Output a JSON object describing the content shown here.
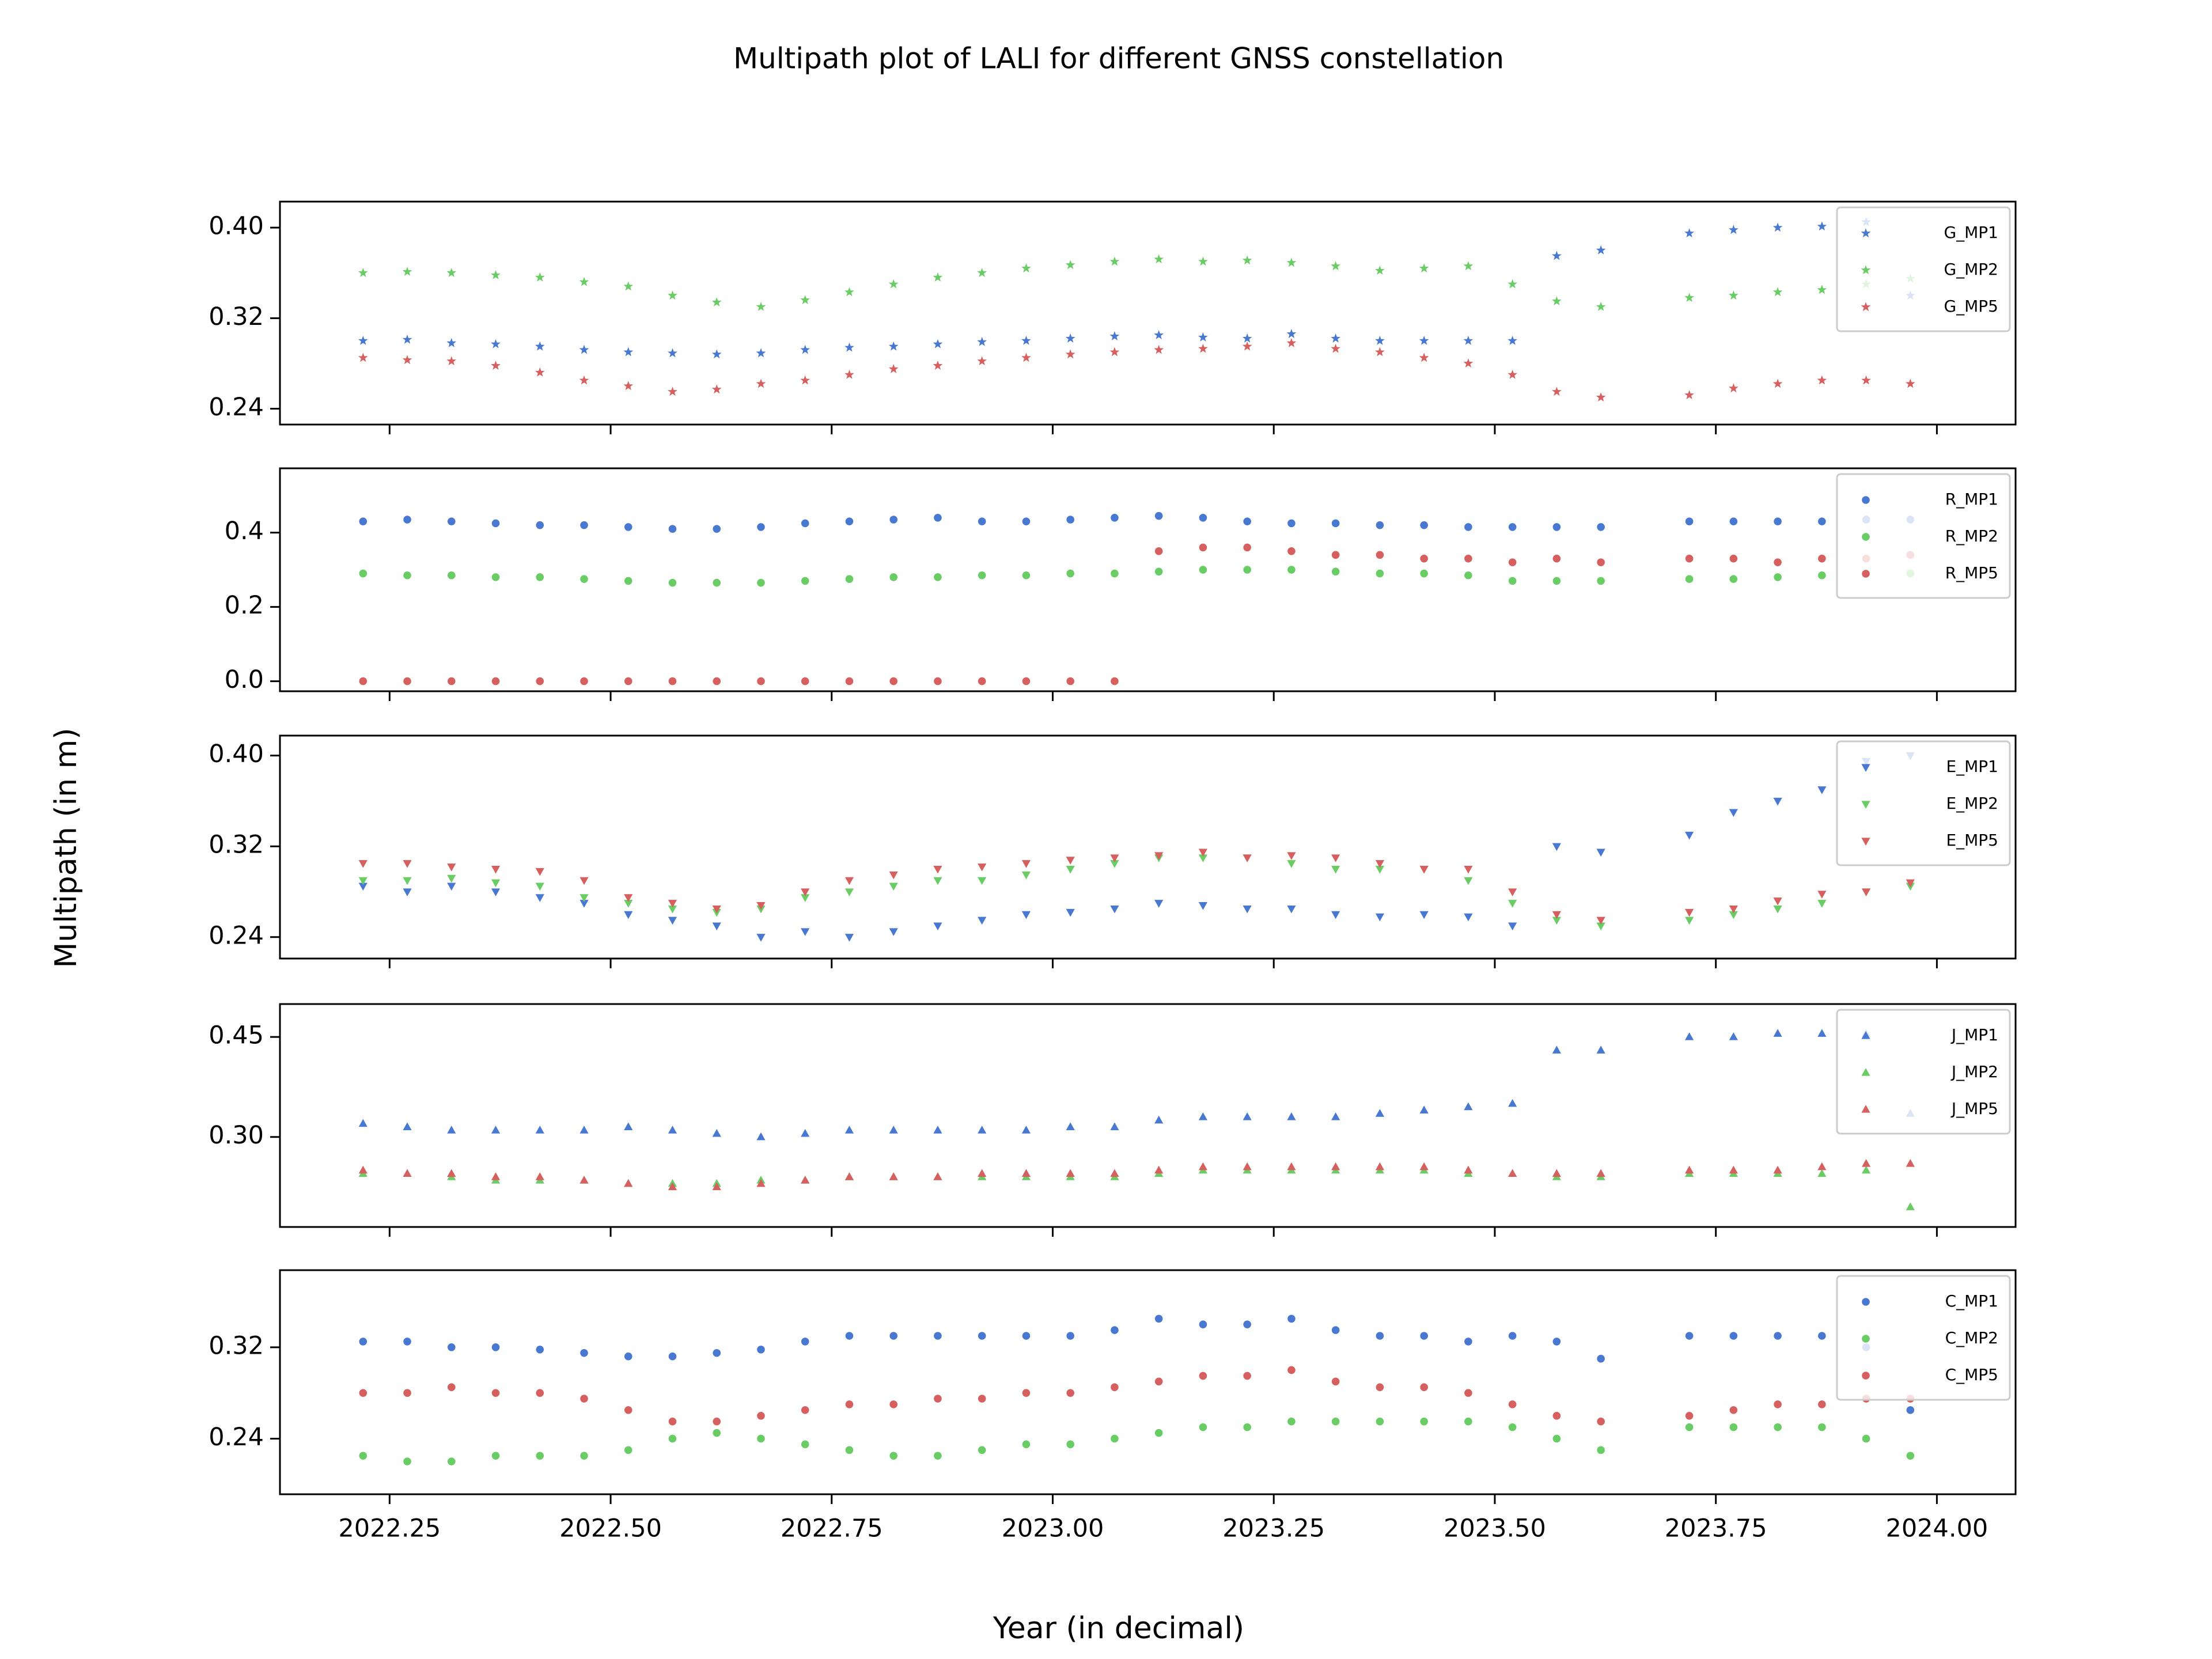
{
  "title": "Multipath plot of LALI for different GNSS constellation",
  "ylabel": "Multipath (in m)",
  "xlabel": "Year (in decimal)",
  "xlim": [
    2022.126,
    2024.089
  ],
  "xticks": [
    2022.25,
    {
      "value": 2022.5,
      "label": "2022.50"
    },
    2022.75,
    {
      "value": 2023,
      "label": "2023.00"
    },
    2023.25,
    {
      "value": 2023.5,
      "label": "2023.50"
    },
    2023.75,
    {
      "value": 2024,
      "label": "2024.00"
    }
  ],
  "x": [
    2022.22,
    2022.27,
    2022.32,
    2022.37,
    2022.42,
    2022.47,
    2022.52,
    2022.57,
    2022.62,
    2022.67,
    2022.72,
    2022.77,
    2022.82,
    2022.87,
    2022.92,
    2022.97,
    2023.02,
    2023.07,
    2023.12,
    2023.17,
    2023.22,
    2023.27,
    2023.32,
    2023.37,
    2023.42,
    2023.47,
    2023.52,
    2023.57,
    2023.62,
    2023.67,
    2023.72,
    2023.77,
    2023.82,
    2023.87,
    2023.92,
    2023.97
  ],
  "chart_data": [
    {
      "type": "scatter",
      "marker": "star",
      "legend": "upper right",
      "ylim": [
        0.226,
        0.423
      ],
      "yticks": [
        {
          "value": 0.4,
          "label": "0.40"
        },
        0.32,
        0.24
      ],
      "series": [
        {
          "name": "G_MP1",
          "color": "#4878d0",
          "values": [
            0.3,
            0.301,
            0.298,
            0.297,
            0.295,
            0.292,
            0.29,
            0.289,
            0.288,
            0.289,
            0.292,
            0.294,
            0.295,
            0.297,
            0.299,
            0.3,
            0.302,
            0.304,
            0.305,
            0.303,
            0.302,
            0.306,
            0.302,
            0.3,
            0.3,
            0.3,
            0.3,
            0.375,
            0.38,
            null,
            0.395,
            0.398,
            0.4,
            0.401,
            0.405,
            0.34
          ]
        },
        {
          "name": "G_MP2",
          "color": "#6acc64",
          "values": [
            0.36,
            0.361,
            0.36,
            0.358,
            0.356,
            0.352,
            0.348,
            0.34,
            0.334,
            0.33,
            0.336,
            0.343,
            0.35,
            0.356,
            0.36,
            0.364,
            0.367,
            0.37,
            0.372,
            0.37,
            0.371,
            0.369,
            0.366,
            0.362,
            0.364,
            0.366,
            0.35,
            0.335,
            0.33,
            null,
            0.338,
            0.34,
            0.343,
            0.345,
            0.35,
            0.355
          ]
        },
        {
          "name": "G_MP5",
          "color": "#d65f5f",
          "values": [
            0.285,
            0.283,
            0.282,
            0.278,
            0.272,
            0.265,
            0.26,
            0.255,
            0.257,
            0.262,
            0.265,
            0.27,
            0.275,
            0.278,
            0.282,
            0.285,
            0.288,
            0.29,
            0.292,
            0.293,
            0.295,
            0.298,
            0.293,
            0.29,
            0.285,
            0.28,
            0.27,
            0.255,
            0.25,
            null,
            0.252,
            0.258,
            0.262,
            0.265,
            0.265,
            0.262
          ]
        }
      ]
    },
    {
      "type": "scatter",
      "marker": "circle",
      "legend": "upper right",
      "ylim": [
        -0.027,
        0.573
      ],
      "yticks": [
        0.4,
        0.2,
        {
          "value": 0,
          "label": "0.0"
        }
      ],
      "series": [
        {
          "name": "R_MP1",
          "color": "#4878d0",
          "values": [
            0.43,
            0.435,
            0.43,
            0.425,
            0.42,
            0.42,
            0.415,
            0.41,
            0.41,
            0.415,
            0.425,
            0.43,
            0.435,
            0.44,
            0.43,
            0.43,
            0.435,
            0.44,
            0.445,
            0.44,
            0.43,
            0.425,
            0.425,
            0.42,
            0.42,
            0.415,
            0.415,
            0.415,
            0.415,
            null,
            0.43,
            0.43,
            0.43,
            0.43,
            0.435,
            0.435
          ]
        },
        {
          "name": "R_MP2",
          "color": "#6acc64",
          "values": [
            0.29,
            0.285,
            0.285,
            0.28,
            0.28,
            0.275,
            0.27,
            0.265,
            0.265,
            0.265,
            0.27,
            0.275,
            0.28,
            0.28,
            0.285,
            0.285,
            0.29,
            0.29,
            0.295,
            0.3,
            0.3,
            0.3,
            0.295,
            0.29,
            0.29,
            0.285,
            0.27,
            0.27,
            0.27,
            null,
            0.275,
            0.275,
            0.28,
            0.285,
            0.29,
            0.29
          ]
        },
        {
          "name": "R_MP5",
          "color": "#d65f5f",
          "values": [
            0,
            0,
            0,
            0,
            0,
            0,
            0,
            0,
            0,
            0,
            0,
            0,
            0,
            0,
            0,
            0,
            0,
            0,
            0.35,
            0.36,
            0.36,
            0.35,
            0.34,
            0.34,
            0.33,
            0.33,
            0.32,
            0.33,
            0.32,
            null,
            0.33,
            0.33,
            0.32,
            0.33,
            0.33,
            0.34
          ]
        }
      ]
    },
    {
      "type": "scatter",
      "marker": "triangle-down",
      "legend": "upper right",
      "ylim": [
        0.2211,
        0.4176
      ],
      "yticks": [
        {
          "value": 0.4,
          "label": "0.40"
        },
        0.32,
        0.24
      ],
      "series": [
        {
          "name": "E_MP1",
          "color": "#4878d0",
          "values": [
            0.285,
            0.28,
            0.285,
            0.28,
            0.275,
            0.27,
            0.26,
            0.255,
            0.25,
            0.24,
            0.245,
            0.24,
            0.245,
            0.25,
            0.255,
            0.26,
            0.262,
            0.265,
            0.27,
            0.268,
            0.265,
            0.265,
            0.26,
            0.258,
            0.26,
            0.258,
            0.25,
            0.32,
            0.315,
            null,
            0.33,
            0.35,
            0.36,
            0.37,
            0.395,
            0.4
          ]
        },
        {
          "name": "E_MP2",
          "color": "#6acc64",
          "values": [
            0.29,
            0.29,
            0.292,
            0.288,
            0.285,
            0.275,
            0.27,
            0.265,
            0.262,
            0.265,
            0.275,
            0.28,
            0.285,
            0.29,
            0.29,
            0.295,
            0.3,
            0.305,
            0.31,
            0.31,
            0.31,
            0.305,
            0.3,
            0.3,
            0.3,
            0.29,
            0.27,
            0.255,
            0.25,
            null,
            0.255,
            0.26,
            0.265,
            0.27,
            0.28,
            0.285
          ]
        },
        {
          "name": "E_MP5",
          "color": "#d65f5f",
          "values": [
            0.305,
            0.305,
            0.302,
            0.3,
            0.298,
            0.29,
            0.275,
            0.27,
            0.265,
            0.268,
            0.28,
            0.29,
            0.295,
            0.3,
            0.302,
            0.305,
            0.308,
            0.31,
            0.312,
            0.315,
            0.31,
            0.312,
            0.31,
            0.305,
            0.3,
            0.3,
            0.28,
            0.26,
            0.255,
            null,
            0.262,
            0.265,
            0.272,
            0.278,
            0.28,
            0.288
          ]
        }
      ]
    },
    {
      "type": "scatter",
      "marker": "triangle-up",
      "legend": "upper right",
      "ylim": [
        0.165,
        0.4993
      ],
      "yticks": [
        0.45,
        {
          "value": 0.3,
          "label": "0.30"
        }
      ],
      "series": [
        {
          "name": "J_MP1",
          "color": "#4878d0",
          "values": [
            0.32,
            0.315,
            0.31,
            0.31,
            0.31,
            0.31,
            0.315,
            0.31,
            0.305,
            0.3,
            0.305,
            0.31,
            0.31,
            0.31,
            0.31,
            0.31,
            0.315,
            0.315,
            0.325,
            0.33,
            0.33,
            0.33,
            0.33,
            0.335,
            0.34,
            0.345,
            0.35,
            0.43,
            0.43,
            null,
            0.45,
            0.45,
            0.455,
            0.455,
            0.455,
            0.335
          ]
        },
        {
          "name": "J_MP2",
          "color": "#6acc64",
          "values": [
            0.245,
            0.245,
            0.24,
            0.235,
            0.235,
            0.235,
            0.23,
            0.23,
            0.23,
            0.235,
            0.235,
            0.24,
            0.24,
            0.24,
            0.24,
            0.24,
            0.24,
            0.24,
            0.245,
            0.25,
            0.25,
            0.25,
            0.25,
            0.25,
            0.25,
            0.245,
            0.245,
            0.24,
            0.24,
            null,
            0.245,
            0.245,
            0.245,
            0.245,
            0.25,
            0.195
          ]
        },
        {
          "name": "J_MP5",
          "color": "#d65f5f",
          "values": [
            0.25,
            0.245,
            0.245,
            0.24,
            0.24,
            0.235,
            0.23,
            0.225,
            0.225,
            0.23,
            0.235,
            0.24,
            0.24,
            0.24,
            0.245,
            0.245,
            0.245,
            0.245,
            0.25,
            0.255,
            0.255,
            0.255,
            0.255,
            0.255,
            0.255,
            0.25,
            0.245,
            0.245,
            0.245,
            null,
            0.25,
            0.25,
            0.25,
            0.255,
            0.26,
            0.26
          ]
        }
      ]
    },
    {
      "type": "scatter",
      "marker": "circle",
      "legend": "upper right",
      "ylim": [
        0.1913,
        0.3875
      ],
      "yticks": [
        0.32,
        0.24
      ],
      "series": [
        {
          "name": "C_MP1",
          "color": "#4878d0",
          "values": [
            0.325,
            0.325,
            0.32,
            0.32,
            0.318,
            0.315,
            0.312,
            0.312,
            0.315,
            0.318,
            0.325,
            0.33,
            0.33,
            0.33,
            0.33,
            0.33,
            0.33,
            0.335,
            0.345,
            0.34,
            0.34,
            0.345,
            0.335,
            0.33,
            0.33,
            0.325,
            0.33,
            0.325,
            0.31,
            null,
            0.33,
            0.33,
            0.33,
            0.33,
            0.32,
            0.265
          ]
        },
        {
          "name": "C_MP2",
          "color": "#6acc64",
          "values": [
            0.225,
            0.22,
            0.22,
            0.225,
            0.225,
            0.225,
            0.23,
            0.24,
            0.245,
            0.24,
            0.235,
            0.23,
            0.225,
            0.225,
            0.23,
            0.235,
            0.235,
            0.24,
            0.245,
            0.25,
            0.25,
            0.255,
            0.255,
            0.255,
            0.255,
            0.255,
            0.25,
            0.24,
            0.23,
            null,
            0.25,
            0.25,
            0.25,
            0.25,
            0.24,
            0.225
          ]
        },
        {
          "name": "C_MP5",
          "color": "#d65f5f",
          "values": [
            0.28,
            0.28,
            0.285,
            0.28,
            0.28,
            0.275,
            0.265,
            0.255,
            0.255,
            0.26,
            0.265,
            0.27,
            0.27,
            0.275,
            0.275,
            0.28,
            0.28,
            0.285,
            0.29,
            0.295,
            0.295,
            0.3,
            0.29,
            0.285,
            0.285,
            0.28,
            0.27,
            0.26,
            0.255,
            null,
            0.26,
            0.265,
            0.27,
            0.27,
            0.275,
            0.275
          ]
        }
      ]
    }
  ]
}
